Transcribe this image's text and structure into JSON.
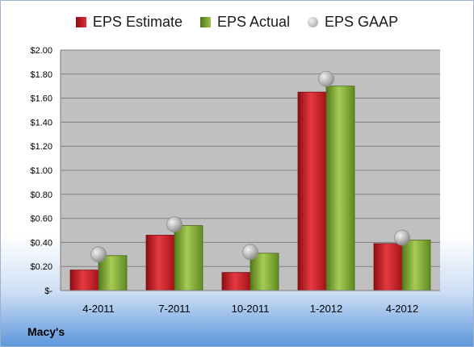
{
  "chart_data": {
    "type": "bar",
    "categories": [
      "4-2011",
      "7-2011",
      "10-2011",
      "1-2012",
      "4-2012"
    ],
    "series": [
      {
        "name": "EPS Estimate",
        "values": [
          0.17,
          0.46,
          0.15,
          1.65,
          0.39
        ],
        "color": "#c0141c"
      },
      {
        "name": "EPS Actual",
        "values": [
          0.29,
          0.54,
          0.31,
          1.7,
          0.42
        ],
        "color": "#6f9a26"
      },
      {
        "name": "EPS GAAP",
        "values": [
          0.3,
          0.55,
          0.32,
          1.76,
          0.44
        ],
        "color": "#a8a8a8",
        "marker": "circle"
      }
    ],
    "ylim": [
      0,
      2.0
    ],
    "yticks": [
      {
        "value": 0,
        "label": "$-"
      },
      {
        "value": 0.2,
        "label": "$0.20"
      },
      {
        "value": 0.4,
        "label": "$0.40"
      },
      {
        "value": 0.6,
        "label": "$0.60"
      },
      {
        "value": 0.8,
        "label": "$0.80"
      },
      {
        "value": 1.0,
        "label": "$1.00"
      },
      {
        "value": 1.2,
        "label": "$1.20"
      },
      {
        "value": 1.4,
        "label": "$1.40"
      },
      {
        "value": 1.6,
        "label": "$1.60"
      },
      {
        "value": 1.8,
        "label": "$1.80"
      },
      {
        "value": 2.0,
        "label": "$2.00"
      }
    ],
    "grid": true,
    "legend_position": "top",
    "plot_background": "#c0c0c0"
  },
  "company_label": "Macy's"
}
